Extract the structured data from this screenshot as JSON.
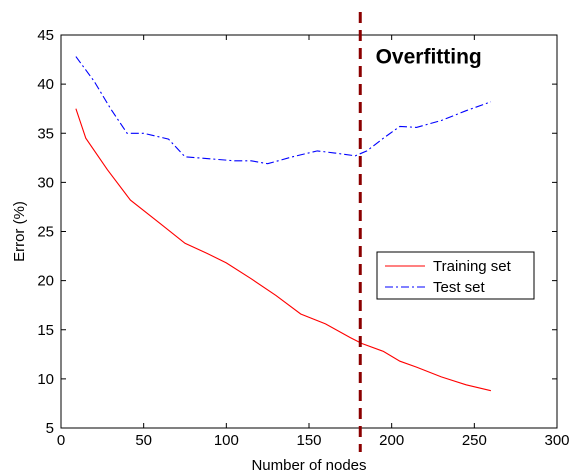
{
  "chart_data": {
    "type": "line",
    "xlabel": "Number of nodes",
    "ylabel": "Error (%)",
    "xlim": [
      0,
      300
    ],
    "ylim": [
      5,
      45
    ],
    "x_ticks": [
      0,
      50,
      100,
      150,
      200,
      250,
      300
    ],
    "y_ticks": [
      5,
      10,
      15,
      20,
      25,
      30,
      35,
      40,
      45
    ],
    "grid": false,
    "legend_position": "right",
    "series": [
      {
        "name": "Training set",
        "color": "#ff0000",
        "style": "solid",
        "x": [
          9,
          15,
          28,
          42,
          60,
          75,
          88,
          100,
          115,
          130,
          145,
          160,
          175,
          182,
          195,
          205,
          215,
          230,
          245,
          260
        ],
        "y": [
          37.5,
          34.5,
          31.3,
          28.2,
          25.8,
          23.8,
          22.8,
          21.8,
          20.2,
          18.5,
          16.6,
          15.6,
          14.2,
          13.6,
          12.8,
          11.8,
          11.2,
          10.2,
          9.4,
          8.8
        ]
      },
      {
        "name": "Test set",
        "color": "#0000ff",
        "style": "dashdot",
        "x": [
          9,
          20,
          30,
          40,
          50,
          65,
          75,
          90,
          105,
          115,
          125,
          140,
          155,
          165,
          178,
          185,
          195,
          205,
          215,
          230,
          245,
          260
        ],
        "y": [
          42.8,
          40.3,
          37.5,
          35.0,
          35.0,
          34.4,
          32.6,
          32.4,
          32.2,
          32.2,
          31.9,
          32.6,
          33.2,
          33.0,
          32.7,
          33.2,
          34.5,
          35.7,
          35.6,
          36.3,
          37.3,
          38.2
        ]
      }
    ],
    "annotations": [
      {
        "text": "Overfitting",
        "x": 180,
        "y": 42.8
      }
    ],
    "vertical_line": {
      "x": 181,
      "color": "#8b0000",
      "style": "dashed"
    }
  }
}
